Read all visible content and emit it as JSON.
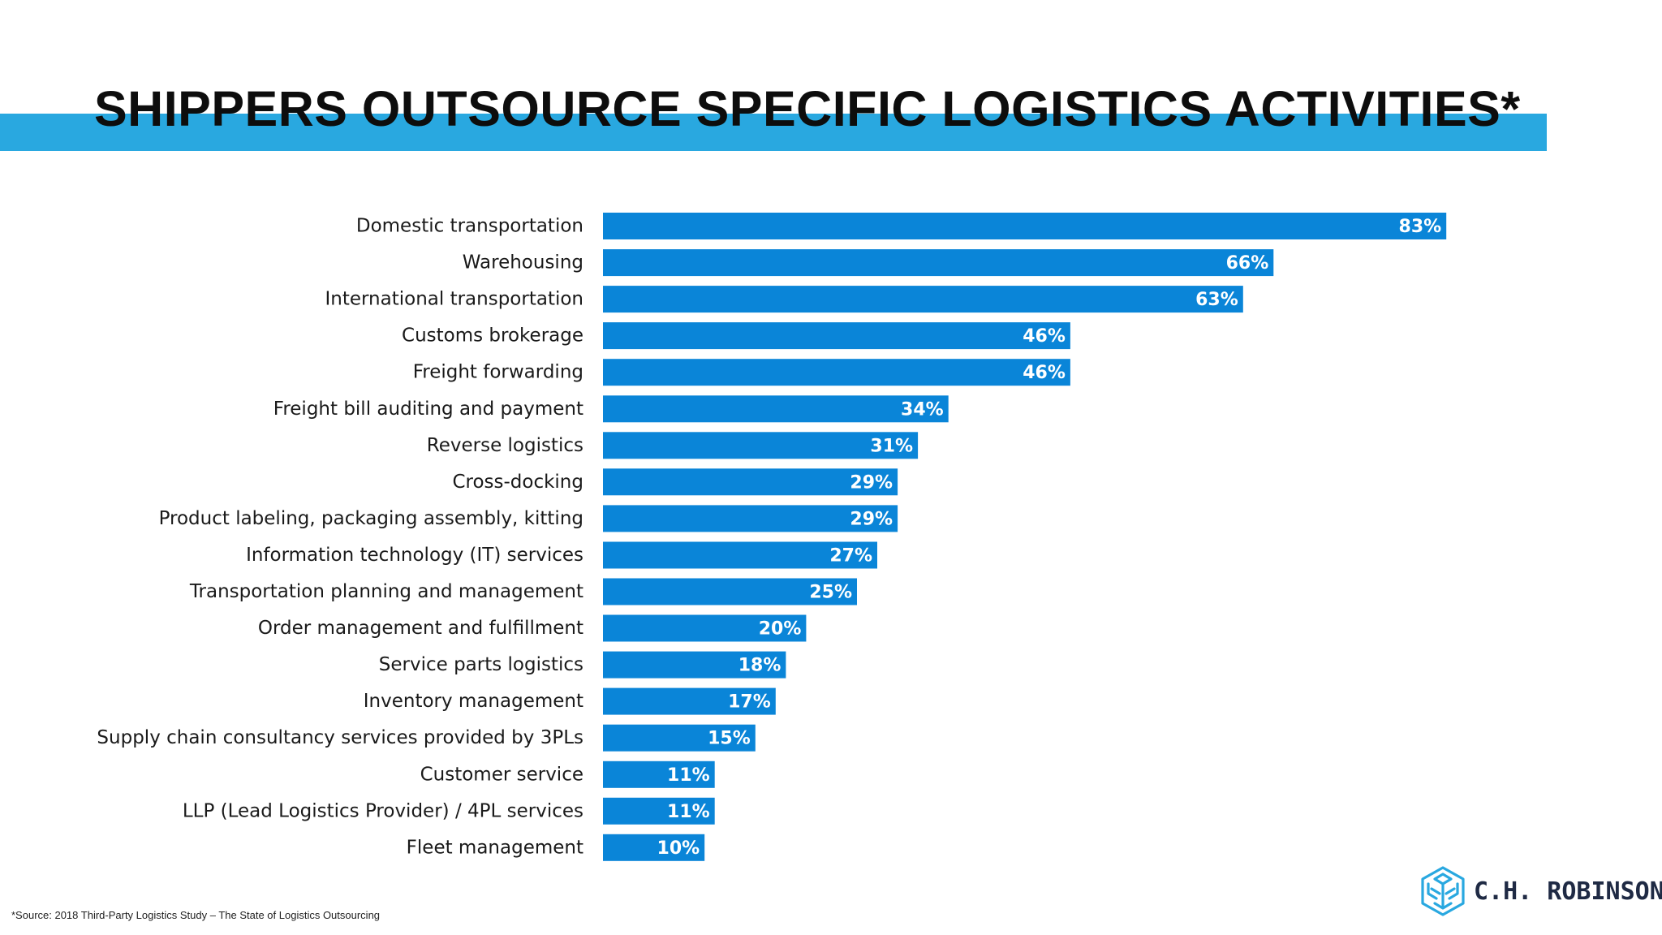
{
  "header": {
    "title": "SHIPPERS OUTSOURCE SPECIFIC LOGISTICS ACTIVITIES*"
  },
  "colors": {
    "title_band": "#29a8e0",
    "bar": "#0a85d8",
    "logo": "#29a8e0"
  },
  "chart_data": {
    "type": "bar",
    "orientation": "horizontal",
    "title": "SHIPPERS OUTSOURCE SPECIFIC LOGISTICS ACTIVITIES*",
    "categories": [
      "Domestic transportation",
      "Warehousing",
      "International transportation",
      "Customs brokerage",
      "Freight forwarding",
      "Freight bill auditing and payment",
      "Reverse logistics",
      "Cross-docking",
      "Product labeling, packaging assembly, kitting",
      "Information technology (IT) services",
      "Transportation planning and management",
      "Order management and fulfillment",
      "Service parts logistics",
      "Inventory management",
      "Supply chain consultancy services provided by 3PLs",
      "Customer service",
      "LLP (Lead Logistics Provider) / 4PL services",
      "Fleet management"
    ],
    "values": [
      83,
      66,
      63,
      46,
      46,
      34,
      31,
      29,
      29,
      27,
      25,
      20,
      18,
      17,
      15,
      11,
      11,
      10
    ],
    "value_labels": [
      "83%",
      "66%",
      "63%",
      "46%",
      "46%",
      "34%",
      "31%",
      "29%",
      "29%",
      "27%",
      "25%",
      "20%",
      "18%",
      "17%",
      "15%",
      "11%",
      "11%",
      "10%"
    ],
    "unit": "%",
    "xlim": [
      0,
      100
    ],
    "grid": false,
    "legend": "none"
  },
  "footnote": "*Source: 2018 Third-Party Logistics Study – The State of Logistics Outsourcing",
  "logo": {
    "icon": "cube-snowflake-icon",
    "text": "C.H. ROBINSON"
  }
}
